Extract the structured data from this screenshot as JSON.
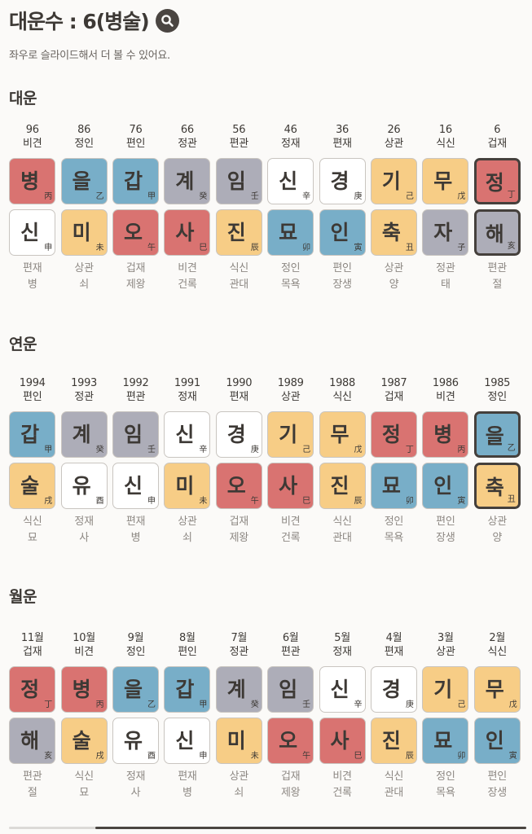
{
  "header": {
    "title": "대운수 : 6(병술)",
    "search_icon": "search-icon",
    "subtitle": "좌우로 슬라이드해서 더 볼 수 있어요."
  },
  "colors": {
    "fire_red": "#d97371",
    "wood_blue": "#78aec8",
    "water_gray": "#adadb8",
    "earth_yellow": "#f7cd86",
    "metal_white": "#ffffff",
    "text": "#3d3935",
    "selected_border": "#45403c"
  },
  "sections": [
    {
      "title": "대운",
      "columns": [
        {
          "head1": "96",
          "head2": "비견",
          "top": {
            "ko": "병",
            "hanja": "丙",
            "color": "red"
          },
          "bottom": {
            "ko": "신",
            "hanja": "申",
            "color": "white"
          },
          "foot1": "편재",
          "foot2": "병",
          "selected": false
        },
        {
          "head1": "86",
          "head2": "정인",
          "top": {
            "ko": "을",
            "hanja": "乙",
            "color": "blue"
          },
          "bottom": {
            "ko": "미",
            "hanja": "未",
            "color": "yellow"
          },
          "foot1": "상관",
          "foot2": "쇠",
          "selected": false
        },
        {
          "head1": "76",
          "head2": "편인",
          "top": {
            "ko": "갑",
            "hanja": "甲",
            "color": "blue"
          },
          "bottom": {
            "ko": "오",
            "hanja": "午",
            "color": "red"
          },
          "foot1": "겁재",
          "foot2": "제왕",
          "selected": false
        },
        {
          "head1": "66",
          "head2": "정관",
          "top": {
            "ko": "계",
            "hanja": "癸",
            "color": "gray"
          },
          "bottom": {
            "ko": "사",
            "hanja": "巳",
            "color": "red"
          },
          "foot1": "비견",
          "foot2": "건록",
          "selected": false
        },
        {
          "head1": "56",
          "head2": "편관",
          "top": {
            "ko": "임",
            "hanja": "壬",
            "color": "gray"
          },
          "bottom": {
            "ko": "진",
            "hanja": "辰",
            "color": "yellow"
          },
          "foot1": "식신",
          "foot2": "관대",
          "selected": false
        },
        {
          "head1": "46",
          "head2": "정재",
          "top": {
            "ko": "신",
            "hanja": "辛",
            "color": "white"
          },
          "bottom": {
            "ko": "묘",
            "hanja": "卯",
            "color": "blue"
          },
          "foot1": "정인",
          "foot2": "목욕",
          "selected": false
        },
        {
          "head1": "36",
          "head2": "편재",
          "top": {
            "ko": "경",
            "hanja": "庚",
            "color": "white"
          },
          "bottom": {
            "ko": "인",
            "hanja": "寅",
            "color": "blue"
          },
          "foot1": "편인",
          "foot2": "장생",
          "selected": false
        },
        {
          "head1": "26",
          "head2": "상관",
          "top": {
            "ko": "기",
            "hanja": "己",
            "color": "yellow"
          },
          "bottom": {
            "ko": "축",
            "hanja": "丑",
            "color": "yellow"
          },
          "foot1": "상관",
          "foot2": "양",
          "selected": false
        },
        {
          "head1": "16",
          "head2": "식신",
          "top": {
            "ko": "무",
            "hanja": "戊",
            "color": "yellow"
          },
          "bottom": {
            "ko": "자",
            "hanja": "子",
            "color": "gray"
          },
          "foot1": "정관",
          "foot2": "태",
          "selected": false
        },
        {
          "head1": "6",
          "head2": "겁재",
          "top": {
            "ko": "정",
            "hanja": "丁",
            "color": "red"
          },
          "bottom": {
            "ko": "해",
            "hanja": "亥",
            "color": "gray"
          },
          "foot1": "편관",
          "foot2": "절",
          "selected": true
        }
      ]
    },
    {
      "title": "연운",
      "columns": [
        {
          "head1": "1994",
          "head2": "편인",
          "top": {
            "ko": "갑",
            "hanja": "甲",
            "color": "blue"
          },
          "bottom": {
            "ko": "술",
            "hanja": "戌",
            "color": "yellow"
          },
          "foot1": "식신",
          "foot2": "묘",
          "selected": false
        },
        {
          "head1": "1993",
          "head2": "정관",
          "top": {
            "ko": "계",
            "hanja": "癸",
            "color": "gray"
          },
          "bottom": {
            "ko": "유",
            "hanja": "酉",
            "color": "white"
          },
          "foot1": "정재",
          "foot2": "사",
          "selected": false
        },
        {
          "head1": "1992",
          "head2": "편관",
          "top": {
            "ko": "임",
            "hanja": "壬",
            "color": "gray"
          },
          "bottom": {
            "ko": "신",
            "hanja": "申",
            "color": "white"
          },
          "foot1": "편재",
          "foot2": "병",
          "selected": false
        },
        {
          "head1": "1991",
          "head2": "정재",
          "top": {
            "ko": "신",
            "hanja": "辛",
            "color": "white"
          },
          "bottom": {
            "ko": "미",
            "hanja": "未",
            "color": "yellow"
          },
          "foot1": "상관",
          "foot2": "쇠",
          "selected": false
        },
        {
          "head1": "1990",
          "head2": "편재",
          "top": {
            "ko": "경",
            "hanja": "庚",
            "color": "white"
          },
          "bottom": {
            "ko": "오",
            "hanja": "午",
            "color": "red"
          },
          "foot1": "겁재",
          "foot2": "제왕",
          "selected": false
        },
        {
          "head1": "1989",
          "head2": "상관",
          "top": {
            "ko": "기",
            "hanja": "己",
            "color": "yellow"
          },
          "bottom": {
            "ko": "사",
            "hanja": "巳",
            "color": "red"
          },
          "foot1": "비견",
          "foot2": "건록",
          "selected": false
        },
        {
          "head1": "1988",
          "head2": "식신",
          "top": {
            "ko": "무",
            "hanja": "戊",
            "color": "yellow"
          },
          "bottom": {
            "ko": "진",
            "hanja": "辰",
            "color": "yellow"
          },
          "foot1": "식신",
          "foot2": "관대",
          "selected": false
        },
        {
          "head1": "1987",
          "head2": "겁재",
          "top": {
            "ko": "정",
            "hanja": "丁",
            "color": "red"
          },
          "bottom": {
            "ko": "묘",
            "hanja": "卯",
            "color": "blue"
          },
          "foot1": "정인",
          "foot2": "목욕",
          "selected": false
        },
        {
          "head1": "1986",
          "head2": "비견",
          "top": {
            "ko": "병",
            "hanja": "丙",
            "color": "red"
          },
          "bottom": {
            "ko": "인",
            "hanja": "寅",
            "color": "blue"
          },
          "foot1": "편인",
          "foot2": "장생",
          "selected": false
        },
        {
          "head1": "1985",
          "head2": "정인",
          "top": {
            "ko": "을",
            "hanja": "乙",
            "color": "blue"
          },
          "bottom": {
            "ko": "축",
            "hanja": "丑",
            "color": "yellow"
          },
          "foot1": "상관",
          "foot2": "양",
          "selected": true
        }
      ]
    },
    {
      "title": "월운",
      "columns": [
        {
          "head1": "11월",
          "head2": "겁재",
          "top": {
            "ko": "정",
            "hanja": "丁",
            "color": "red"
          },
          "bottom": {
            "ko": "해",
            "hanja": "亥",
            "color": "gray"
          },
          "foot1": "편관",
          "foot2": "절",
          "selected": false
        },
        {
          "head1": "10월",
          "head2": "비견",
          "top": {
            "ko": "병",
            "hanja": "丙",
            "color": "red"
          },
          "bottom": {
            "ko": "술",
            "hanja": "戌",
            "color": "yellow"
          },
          "foot1": "식신",
          "foot2": "묘",
          "selected": false
        },
        {
          "head1": "9월",
          "head2": "정인",
          "top": {
            "ko": "을",
            "hanja": "乙",
            "color": "blue"
          },
          "bottom": {
            "ko": "유",
            "hanja": "酉",
            "color": "white"
          },
          "foot1": "정재",
          "foot2": "사",
          "selected": false
        },
        {
          "head1": "8월",
          "head2": "편인",
          "top": {
            "ko": "갑",
            "hanja": "甲",
            "color": "blue"
          },
          "bottom": {
            "ko": "신",
            "hanja": "申",
            "color": "white"
          },
          "foot1": "편재",
          "foot2": "병",
          "selected": false
        },
        {
          "head1": "7월",
          "head2": "정관",
          "top": {
            "ko": "계",
            "hanja": "癸",
            "color": "gray"
          },
          "bottom": {
            "ko": "미",
            "hanja": "未",
            "color": "yellow"
          },
          "foot1": "상관",
          "foot2": "쇠",
          "selected": false
        },
        {
          "head1": "6월",
          "head2": "편관",
          "top": {
            "ko": "임",
            "hanja": "壬",
            "color": "gray"
          },
          "bottom": {
            "ko": "오",
            "hanja": "午",
            "color": "red"
          },
          "foot1": "겁재",
          "foot2": "제왕",
          "selected": false
        },
        {
          "head1": "5월",
          "head2": "정재",
          "top": {
            "ko": "신",
            "hanja": "辛",
            "color": "white"
          },
          "bottom": {
            "ko": "사",
            "hanja": "巳",
            "color": "red"
          },
          "foot1": "비견",
          "foot2": "건록",
          "selected": false
        },
        {
          "head1": "4월",
          "head2": "편재",
          "top": {
            "ko": "경",
            "hanja": "庚",
            "color": "white"
          },
          "bottom": {
            "ko": "진",
            "hanja": "辰",
            "color": "yellow"
          },
          "foot1": "식신",
          "foot2": "관대",
          "selected": false
        },
        {
          "head1": "3월",
          "head2": "상관",
          "top": {
            "ko": "기",
            "hanja": "己",
            "color": "yellow"
          },
          "bottom": {
            "ko": "묘",
            "hanja": "卯",
            "color": "blue"
          },
          "foot1": "정인",
          "foot2": "목욕",
          "selected": false
        },
        {
          "head1": "2월",
          "head2": "식신",
          "top": {
            "ko": "무",
            "hanja": "戊",
            "color": "yellow"
          },
          "bottom": {
            "ko": "인",
            "hanja": "寅",
            "color": "blue"
          },
          "foot1": "편인",
          "foot2": "장생",
          "selected": false
        }
      ]
    }
  ]
}
